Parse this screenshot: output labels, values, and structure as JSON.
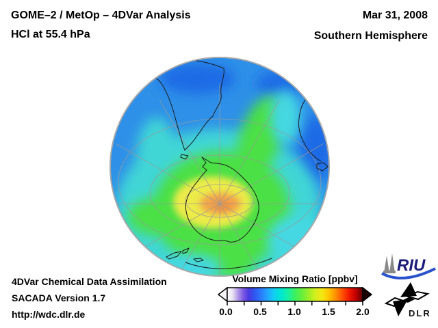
{
  "header": {
    "title_line1": "GOME–2 / MetOp – 4DVar Analysis",
    "title_line2": "HCl at 55.4 hPa",
    "date": "Mar 31, 2008",
    "region": "Southern Hemisphere"
  },
  "footer": {
    "line1": "4DVar Chemical Data Assimilation",
    "line2": "SACADA Version 1.7",
    "line3": "http://wdc.dlr.de"
  },
  "colorbar": {
    "title": "Volume Mixing Ratio [ppbv]",
    "min": 0.0,
    "max": 2.0,
    "tick_labels": [
      "0.0",
      "0.5",
      "1.0",
      "1.5",
      "2.0"
    ],
    "minor_tick_count": 9,
    "gradient_stops": [
      [
        "0%",
        "#ffffff"
      ],
      [
        "4%",
        "#e9e1f3"
      ],
      [
        "8%",
        "#b197e8"
      ],
      [
        "12%",
        "#7a57e2"
      ],
      [
        "16%",
        "#4839e2"
      ],
      [
        "20%",
        "#2f55ee"
      ],
      [
        "25%",
        "#2b7bff"
      ],
      [
        "30%",
        "#22a8ff"
      ],
      [
        "35%",
        "#10d0f0"
      ],
      [
        "40%",
        "#00e8d0"
      ],
      [
        "45%",
        "#18f0a0"
      ],
      [
        "50%",
        "#3cf060"
      ],
      [
        "55%",
        "#66ee3c"
      ],
      [
        "60%",
        "#9cee28"
      ],
      [
        "65%",
        "#d2ee1e"
      ],
      [
        "70%",
        "#f4e814"
      ],
      [
        "75%",
        "#ffc400"
      ],
      [
        "80%",
        "#ff9000"
      ],
      [
        "85%",
        "#ff5000"
      ],
      [
        "90%",
        "#f01800"
      ],
      [
        "95%",
        "#c00000"
      ],
      [
        "100%",
        "#5a0000"
      ]
    ]
  },
  "map": {
    "projection": "Orthographic globe view of the Southern Hemisphere, South Pole near centre",
    "graticule": "latitude/longitude grid every 30 degrees",
    "visible_coastlines": [
      "South America",
      "Antarctica",
      "Australia",
      "Tasmania",
      "New Zealand"
    ]
  },
  "chart_data": {
    "type": "heatmap",
    "title": "HCl volume mixing ratio at 55.4 hPa, Southern Hemisphere, Mar 31, 2008",
    "colorbar_label": "Volume Mixing Ratio [ppbv]",
    "scale_range": [
      0.0,
      2.0
    ],
    "scale_ticks": [
      0.0,
      0.5,
      1.0,
      1.5,
      2.0
    ],
    "qualitative_field": [
      {
        "region": "South Pole / central Antarctica",
        "value_ppbv": "~1.3-1.5 (yellow-orange maximum)"
      },
      {
        "region": "Antarctica with plume extending northeast toward Australia",
        "value_ppbv": "~0.9-1.2 (green)"
      },
      {
        "region": "Southern mid-latitudes",
        "value_ppbv": "~0.6-0.8 (cyan)"
      },
      {
        "region": "Equatorward limb and subtropics",
        "value_ppbv": "~0.4-0.55 (blue, darkest patches near top and right limb)"
      }
    ]
  },
  "logos": {
    "riu_label": "RIU",
    "dlr_label": "DLR"
  }
}
